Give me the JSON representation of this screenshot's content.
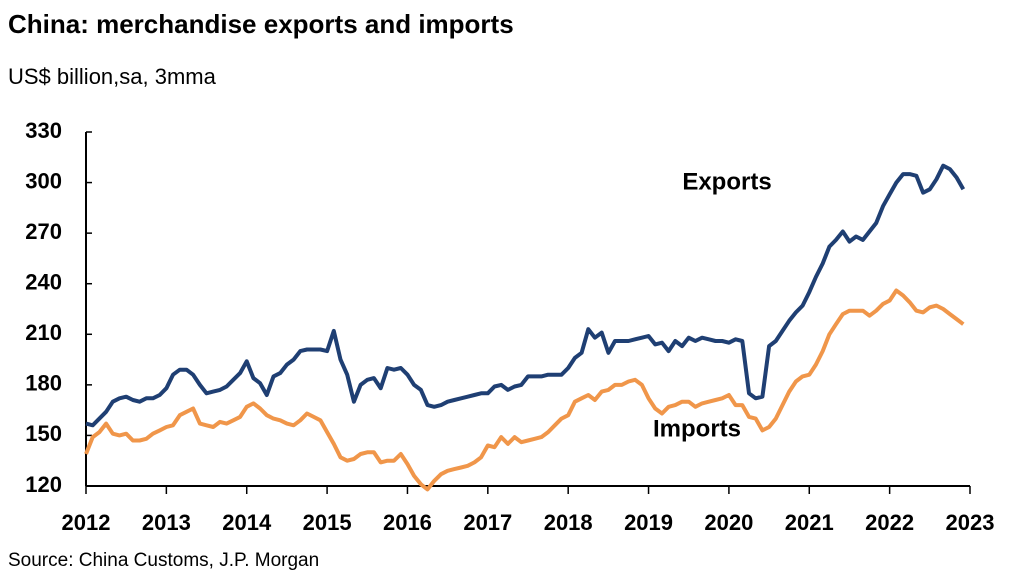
{
  "chart_data": {
    "type": "line",
    "title": "China: merchandise exports and imports",
    "subtitle": "US$ billion,sa, 3mma",
    "source": "Source: China Customs, J.P. Morgan",
    "annotations": [
      "Exports",
      "Imports"
    ],
    "xlim": [
      2012,
      2023
    ],
    "xticks": [
      2012,
      2013,
      2014,
      2015,
      2016,
      2017,
      2018,
      2019,
      2020,
      2021,
      2022,
      2023
    ],
    "ylim": [
      120,
      330
    ],
    "yticks": [
      120,
      150,
      180,
      210,
      240,
      270,
      300,
      330
    ],
    "x": [
      2012,
      2012.083,
      2012.167,
      2012.25,
      2012.333,
      2012.417,
      2012.5,
      2012.583,
      2012.667,
      2012.75,
      2012.833,
      2012.917,
      2013,
      2013.083,
      2013.167,
      2013.25,
      2013.333,
      2013.417,
      2013.5,
      2013.583,
      2013.667,
      2013.75,
      2013.833,
      2013.917,
      2014,
      2014.083,
      2014.167,
      2014.25,
      2014.333,
      2014.417,
      2014.5,
      2014.583,
      2014.667,
      2014.75,
      2014.833,
      2014.917,
      2015,
      2015.083,
      2015.167,
      2015.25,
      2015.333,
      2015.417,
      2015.5,
      2015.583,
      2015.667,
      2015.75,
      2015.833,
      2015.917,
      2016,
      2016.083,
      2016.167,
      2016.25,
      2016.333,
      2016.417,
      2016.5,
      2016.583,
      2016.667,
      2016.75,
      2016.833,
      2016.917,
      2017,
      2017.083,
      2017.167,
      2017.25,
      2017.333,
      2017.417,
      2017.5,
      2017.583,
      2017.667,
      2017.75,
      2017.833,
      2017.917,
      2018,
      2018.083,
      2018.167,
      2018.25,
      2018.333,
      2018.417,
      2018.5,
      2018.583,
      2018.667,
      2018.75,
      2018.833,
      2018.917,
      2019,
      2019.083,
      2019.167,
      2019.25,
      2019.333,
      2019.417,
      2019.5,
      2019.583,
      2019.667,
      2019.75,
      2019.833,
      2019.917,
      2020,
      2020.083,
      2020.167,
      2020.25,
      2020.333,
      2020.417,
      2020.5,
      2020.583,
      2020.667,
      2020.75,
      2020.833,
      2020.917,
      2021,
      2021.083,
      2021.167,
      2021.25,
      2021.333,
      2021.417,
      2021.5,
      2021.583,
      2021.667,
      2021.75,
      2021.833,
      2021.917,
      2022,
      2022.083,
      2022.167,
      2022.25,
      2022.333,
      2022.417,
      2022.5,
      2022.583,
      2022.667,
      2022.75,
      2022.833,
      2022.917
    ],
    "series": [
      {
        "name": "Exports",
        "color": "#1f3f73",
        "values": [
          157,
          156,
          160,
          164,
          170,
          172,
          173,
          171,
          170,
          172,
          172,
          174,
          178,
          186,
          189,
          189,
          186,
          180,
          175,
          176,
          177,
          179,
          183,
          187,
          194,
          184,
          181,
          174,
          185,
          187,
          192,
          195,
          200,
          201,
          201,
          201,
          200,
          212,
          195,
          186,
          170,
          180,
          183,
          184,
          178,
          190,
          189,
          190,
          186,
          180,
          177,
          168,
          167,
          168,
          170,
          171,
          172,
          173,
          174,
          175,
          175,
          179,
          180,
          177,
          179,
          180,
          185,
          185,
          185,
          186,
          186,
          186,
          190,
          196,
          199,
          213,
          208,
          211,
          199,
          206,
          206,
          206,
          207,
          208,
          209,
          204,
          205,
          200,
          206,
          203,
          208,
          206,
          208,
          207,
          206,
          206,
          205,
          207,
          206,
          175,
          172,
          173,
          203,
          206,
          212,
          218,
          223,
          227,
          235,
          244,
          252,
          262,
          266,
          271,
          265,
          268,
          266,
          271,
          276,
          286,
          293,
          300,
          305,
          305,
          304,
          294,
          296,
          302,
          310,
          308,
          303,
          296
        ]
      },
      {
        "name": "Imports",
        "color": "#f0964a",
        "values": [
          139,
          149,
          152,
          157,
          151,
          150,
          151,
          147,
          147,
          148,
          151,
          153,
          155,
          156,
          162,
          164,
          166,
          157,
          156,
          155,
          158,
          157,
          159,
          161,
          167,
          169,
          166,
          162,
          160,
          159,
          157,
          156,
          159,
          163,
          161,
          159,
          152,
          145,
          137,
          135,
          136,
          139,
          140,
          140,
          134,
          135,
          135,
          139,
          133,
          126,
          121,
          118,
          123,
          127,
          129,
          130,
          131,
          132,
          134,
          137,
          144,
          143,
          149,
          145,
          149,
          146,
          147,
          148,
          149,
          152,
          156,
          160,
          162,
          170,
          172,
          174,
          171,
          176,
          177,
          180,
          180,
          182,
          183,
          180,
          172,
          166,
          163,
          167,
          168,
          170,
          170,
          167,
          169,
          170,
          171,
          172,
          174,
          168,
          168,
          161,
          160,
          153,
          155,
          160,
          168,
          176,
          182,
          185,
          186,
          192,
          200,
          210,
          216,
          222,
          224,
          224,
          224,
          221,
          224,
          228,
          230,
          236,
          233,
          229,
          224,
          223,
          226,
          227,
          225,
          222,
          219,
          216
        ]
      }
    ]
  }
}
